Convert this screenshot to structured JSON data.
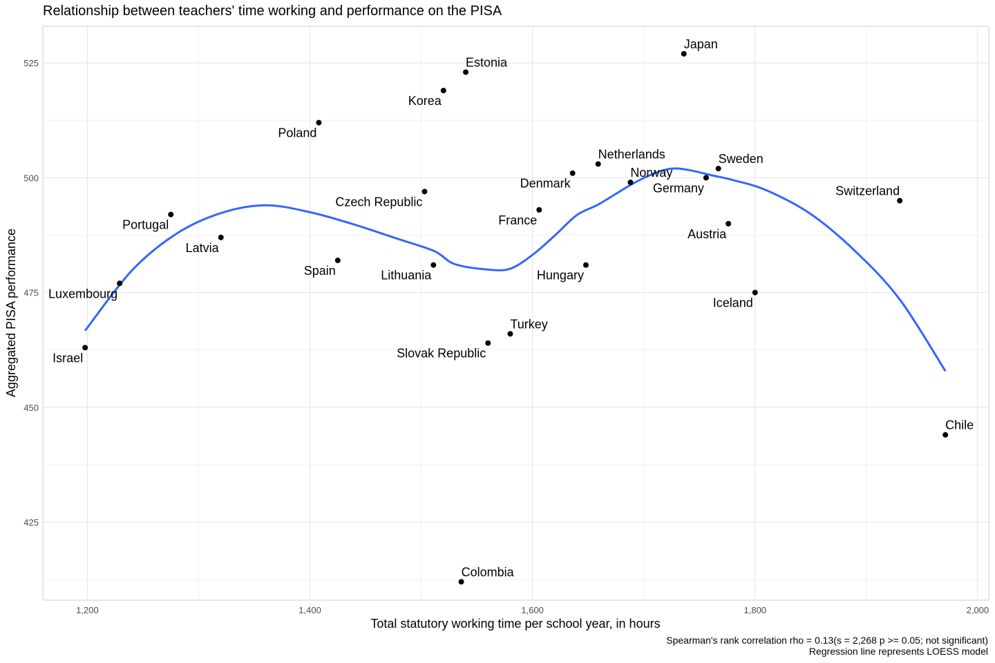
{
  "chart_data": {
    "type": "scatter",
    "title": "Relationship between teachers' time working and performance on the PISA",
    "xlabel": "Total statutory working time per school year, in hours",
    "ylabel": "Aggregated PISA performance",
    "xlim": [
      1160,
      2010
    ],
    "ylim": [
      408,
      533
    ],
    "x_ticks": [
      1200,
      1400,
      1600,
      1800,
      2000
    ],
    "x_tick_labels": [
      "1,200",
      "1,400",
      "1,600",
      "1,800",
      "2,000"
    ],
    "y_ticks": [
      425,
      450,
      475,
      500,
      525
    ],
    "y_tick_labels": [
      "425",
      "450",
      "475",
      "500",
      "525"
    ],
    "grid": true,
    "point_color": "#000000",
    "line_color": "#3366FF",
    "points": [
      {
        "label": "Israel",
        "x": 1198,
        "y": 463,
        "pos": "below-left"
      },
      {
        "label": "Luxembourg",
        "x": 1229,
        "y": 477,
        "pos": "below-left"
      },
      {
        "label": "Portugal",
        "x": 1275,
        "y": 492,
        "pos": "below-left"
      },
      {
        "label": "Latvia",
        "x": 1320,
        "y": 487,
        "pos": "below-left"
      },
      {
        "label": "Poland",
        "x": 1408,
        "y": 512,
        "pos": "below-left"
      },
      {
        "label": "Spain",
        "x": 1425,
        "y": 482,
        "pos": "below-left"
      },
      {
        "label": "Czech Republic",
        "x": 1503,
        "y": 497,
        "pos": "below-left"
      },
      {
        "label": "Lithuania",
        "x": 1511,
        "y": 481,
        "pos": "below-left"
      },
      {
        "label": "Korea",
        "x": 1520,
        "y": 519,
        "pos": "below-left"
      },
      {
        "label": "Colombia",
        "x": 1536,
        "y": 412,
        "pos": "above-right"
      },
      {
        "label": "Estonia",
        "x": 1540,
        "y": 523,
        "pos": "above-right"
      },
      {
        "label": "Slovak Republic",
        "x": 1560,
        "y": 464,
        "pos": "below-left"
      },
      {
        "label": "Turkey",
        "x": 1580,
        "y": 466,
        "pos": "above-right"
      },
      {
        "label": "France",
        "x": 1606,
        "y": 493,
        "pos": "below-left"
      },
      {
        "label": "Denmark",
        "x": 1636,
        "y": 501,
        "pos": "below-left"
      },
      {
        "label": "Hungary",
        "x": 1648,
        "y": 481,
        "pos": "below-left"
      },
      {
        "label": "Netherlands",
        "x": 1659,
        "y": 503,
        "pos": "above-right"
      },
      {
        "label": "Norway",
        "x": 1688,
        "y": 499,
        "pos": "above-right"
      },
      {
        "label": "Japan",
        "x": 1736,
        "y": 527,
        "pos": "above-right"
      },
      {
        "label": "Germany",
        "x": 1756,
        "y": 500,
        "pos": "below-left"
      },
      {
        "label": "Sweden",
        "x": 1767,
        "y": 502,
        "pos": "above-right"
      },
      {
        "label": "Austria",
        "x": 1776,
        "y": 490,
        "pos": "below-left"
      },
      {
        "label": "Iceland",
        "x": 1800,
        "y": 475,
        "pos": "below-left"
      },
      {
        "label": "Switzerland",
        "x": 1930,
        "y": 495,
        "pos": "above-left"
      },
      {
        "label": "Chile",
        "x": 1971,
        "y": 444,
        "pos": "above-right"
      }
    ],
    "loess_curve": [
      [
        1198,
        466.7
      ],
      [
        1240,
        479.8
      ],
      [
        1280,
        487.8
      ],
      [
        1320,
        492.3
      ],
      [
        1360,
        494.0
      ],
      [
        1400,
        492.5
      ],
      [
        1440,
        489.8
      ],
      [
        1480,
        486.6
      ],
      [
        1512,
        484.0
      ],
      [
        1530,
        481.2
      ],
      [
        1560,
        480.0
      ],
      [
        1580,
        480.2
      ],
      [
        1600,
        483.2
      ],
      [
        1620,
        487.4
      ],
      [
        1640,
        491.9
      ],
      [
        1660,
        494.3
      ],
      [
        1690,
        498.7
      ],
      [
        1710,
        501.0
      ],
      [
        1725,
        502.0
      ],
      [
        1740,
        501.7
      ],
      [
        1760,
        500.6
      ],
      [
        1780,
        499.5
      ],
      [
        1810,
        497.3
      ],
      [
        1850,
        492.1
      ],
      [
        1890,
        484.0
      ],
      [
        1930,
        473.5
      ],
      [
        1971,
        457.9
      ]
    ],
    "annotations": [
      "Spearman's rank correlation rho = 0.13(s = 2,268 p >= 0.05; not significant)",
      "Regression line represents LOESS model"
    ]
  }
}
